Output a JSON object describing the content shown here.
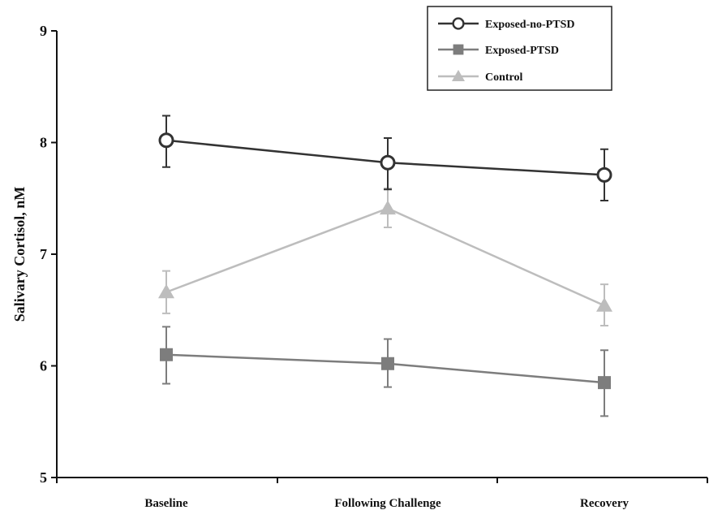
{
  "chart_data": {
    "type": "line",
    "title": "",
    "xlabel": "",
    "ylabel": "Salivary Cortisol, nM",
    "categories": [
      "Baseline",
      "Following Challenge",
      "Recovery"
    ],
    "ylim": [
      5,
      9
    ],
    "yticks": [
      5,
      6,
      7,
      8,
      9
    ],
    "grid": false,
    "legend_position": "top-right",
    "series": [
      {
        "name": "Exposed-no-PTSD",
        "marker": "open-circle",
        "color": "#333333",
        "values": [
          8.02,
          7.82,
          7.71
        ],
        "error_low": [
          7.78,
          7.58,
          7.48
        ],
        "error_high": [
          8.24,
          8.04,
          7.94
        ]
      },
      {
        "name": "Exposed-PTSD",
        "marker": "square",
        "color": "#7d7d7d",
        "values": [
          6.1,
          6.02,
          5.85
        ],
        "error_low": [
          5.84,
          5.81,
          5.55
        ],
        "error_high": [
          6.35,
          6.24,
          6.14
        ]
      },
      {
        "name": "Control",
        "marker": "triangle",
        "color": "#bdbdbd",
        "values": [
          6.66,
          7.41,
          6.54
        ],
        "error_low": [
          6.47,
          7.24,
          6.36
        ],
        "error_high": [
          6.85,
          7.59,
          6.73
        ]
      }
    ]
  }
}
